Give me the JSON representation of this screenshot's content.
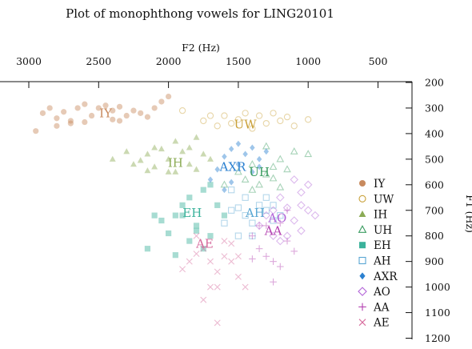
{
  "chart_data": {
    "type": "scatter",
    "title": "Plot of monophthong vowels for LING20101",
    "xlabel": "F2 (Hz)",
    "ylabel": "F1 (Hz)",
    "x_axis": {
      "position": "top",
      "reversed": true,
      "range": [
        3100,
        700
      ],
      "ticks": [
        3000,
        2500,
        2000,
        1500,
        1000,
        500
      ],
      "tick_labels": [
        "3000",
        "2500",
        "2000",
        "1500",
        "1000",
        "500"
      ]
    },
    "y_axis": {
      "position": "right",
      "reversed": true,
      "range": [
        200,
        1200
      ],
      "ticks": [
        200,
        300,
        400,
        500,
        600,
        700,
        800,
        900,
        1000,
        1100,
        1200
      ],
      "tick_labels": [
        "200",
        "300",
        "400",
        "500",
        "600",
        "700",
        "800",
        "900",
        "1000",
        "1100",
        "1200"
      ]
    },
    "grid": false,
    "legend_position": "right",
    "series": [
      {
        "name": "IY",
        "marker": "circle-filled",
        "color": "#c88a5e",
        "label_pos": [
          2450,
          320
        ],
        "points": [
          [
            2900,
            320
          ],
          [
            2850,
            300
          ],
          [
            2800,
            340
          ],
          [
            2750,
            315
          ],
          [
            2700,
            350
          ],
          [
            2650,
            300
          ],
          [
            2600,
            285
          ],
          [
            2550,
            330
          ],
          [
            2500,
            300
          ],
          [
            2450,
            290
          ],
          [
            2400,
            310
          ],
          [
            2350,
            295
          ],
          [
            2300,
            330
          ],
          [
            2250,
            310
          ],
          [
            2200,
            320
          ],
          [
            2100,
            300
          ],
          [
            2050,
            275
          ],
          [
            2000,
            255
          ],
          [
            2950,
            390
          ],
          [
            2800,
            370
          ],
          [
            2700,
            360
          ],
          [
            2400,
            345
          ],
          [
            2600,
            355
          ],
          [
            2350,
            350
          ],
          [
            2150,
            335
          ]
        ]
      },
      {
        "name": "UW",
        "marker": "circle-open",
        "color": "#c9a13a",
        "label_pos": [
          1450,
          365
        ],
        "points": [
          [
            1750,
            350
          ],
          [
            1650,
            370
          ],
          [
            1600,
            330
          ],
          [
            1550,
            360
          ],
          [
            1500,
            345
          ],
          [
            1450,
            320
          ],
          [
            1400,
            380
          ],
          [
            1350,
            330
          ],
          [
            1300,
            360
          ],
          [
            1250,
            320
          ],
          [
            1200,
            350
          ],
          [
            1150,
            335
          ],
          [
            1100,
            370
          ],
          [
            1000,
            345
          ],
          [
            1900,
            310
          ],
          [
            1700,
            330
          ]
        ]
      },
      {
        "name": "IH",
        "marker": "triangle-filled",
        "color": "#8bab55",
        "label_pos": [
          1950,
          515
        ],
        "points": [
          [
            2300,
            470
          ],
          [
            2250,
            520
          ],
          [
            2200,
            505
          ],
          [
            2150,
            480
          ],
          [
            2100,
            530
          ],
          [
            2050,
            460
          ],
          [
            2000,
            500
          ],
          [
            1950,
            550
          ],
          [
            1900,
            470
          ],
          [
            1850,
            520
          ],
          [
            1800,
            540
          ],
          [
            1750,
            480
          ],
          [
            1700,
            500
          ],
          [
            2400,
            500
          ],
          [
            2150,
            545
          ],
          [
            1950,
            430
          ],
          [
            2100,
            455
          ],
          [
            1850,
            455
          ],
          [
            1800,
            415
          ],
          [
            2000,
            550
          ]
        ]
      },
      {
        "name": "UH",
        "marker": "triangle-open",
        "color": "#3c9d62",
        "label_pos": [
          1350,
          550
        ],
        "points": [
          [
            1600,
            600
          ],
          [
            1500,
            550
          ],
          [
            1450,
            580
          ],
          [
            1400,
            520
          ],
          [
            1350,
            600
          ],
          [
            1300,
            560
          ],
          [
            1250,
            530
          ],
          [
            1200,
            500
          ],
          [
            1150,
            540
          ],
          [
            1100,
            470
          ],
          [
            1000,
            480
          ],
          [
            1200,
            610
          ],
          [
            1300,
            450
          ],
          [
            1400,
            620
          ],
          [
            1250,
            575
          ]
        ]
      },
      {
        "name": "EH",
        "marker": "square-filled",
        "color": "#3bb29b",
        "label_pos": [
          1830,
          710
        ],
        "points": [
          [
            1950,
            720
          ],
          [
            1900,
            680
          ],
          [
            1850,
            650
          ],
          [
            1800,
            760
          ],
          [
            1750,
            620
          ],
          [
            1700,
            600
          ],
          [
            1650,
            680
          ],
          [
            1600,
            720
          ],
          [
            1850,
            820
          ],
          [
            2000,
            790
          ],
          [
            2100,
            720
          ],
          [
            2150,
            850
          ],
          [
            1750,
            850
          ],
          [
            1700,
            800
          ],
          [
            1950,
            875
          ],
          [
            1800,
            780
          ],
          [
            1900,
            720
          ],
          [
            2050,
            740
          ]
        ]
      },
      {
        "name": "AH",
        "marker": "square-open",
        "color": "#59a7d3",
        "label_pos": [
          1380,
          710
        ],
        "points": [
          [
            1600,
            750
          ],
          [
            1550,
            700
          ],
          [
            1500,
            690
          ],
          [
            1450,
            720
          ],
          [
            1400,
            750
          ],
          [
            1350,
            680
          ],
          [
            1300,
            700
          ],
          [
            1250,
            740
          ],
          [
            1200,
            720
          ],
          [
            1500,
            800
          ],
          [
            1400,
            800
          ],
          [
            1300,
            650
          ],
          [
            1450,
            650
          ],
          [
            1550,
            620
          ],
          [
            1250,
            680
          ]
        ]
      },
      {
        "name": "AXR",
        "marker": "diamond-filled",
        "color": "#2b80d0",
        "label_pos": [
          1540,
          530
        ],
        "points": [
          [
            1650,
            540
          ],
          [
            1600,
            490
          ],
          [
            1550,
            460
          ],
          [
            1500,
            520
          ],
          [
            1450,
            480
          ],
          [
            1400,
            550
          ],
          [
            1350,
            500
          ],
          [
            1300,
            470
          ],
          [
            1600,
            620
          ],
          [
            1550,
            590
          ],
          [
            1500,
            440
          ],
          [
            1700,
            580
          ],
          [
            1400,
            455
          ],
          [
            1350,
            530
          ]
        ]
      },
      {
        "name": "AO",
        "marker": "diamond-open",
        "color": "#b263d8",
        "label_pos": [
          1220,
          730
        ],
        "points": [
          [
            1350,
            760
          ],
          [
            1300,
            720
          ],
          [
            1250,
            700
          ],
          [
            1200,
            650
          ],
          [
            1150,
            690
          ],
          [
            1100,
            740
          ],
          [
            1050,
            680
          ],
          [
            1000,
            700
          ],
          [
            950,
            720
          ],
          [
            1050,
            630
          ],
          [
            1100,
            580
          ],
          [
            1000,
            600
          ],
          [
            1250,
            800
          ],
          [
            1150,
            800
          ],
          [
            1200,
            820
          ],
          [
            1050,
            780
          ]
        ]
      },
      {
        "name": "AA",
        "marker": "plus",
        "color": "#b340b0",
        "label_pos": [
          1250,
          780
        ],
        "points": [
          [
            1400,
            800
          ],
          [
            1350,
            850
          ],
          [
            1300,
            880
          ],
          [
            1250,
            900
          ],
          [
            1200,
            920
          ],
          [
            1150,
            820
          ],
          [
            1100,
            860
          ],
          [
            1250,
            980
          ],
          [
            1350,
            760
          ],
          [
            1400,
            890
          ],
          [
            1200,
            750
          ],
          [
            1150,
            700
          ],
          [
            1300,
            760
          ]
        ]
      },
      {
        "name": "AE",
        "marker": "x",
        "color": "#d66a9c",
        "label_pos": [
          1740,
          830
        ],
        "points": [
          [
            1850,
            900
          ],
          [
            1800,
            870
          ],
          [
            1750,
            850
          ],
          [
            1700,
            900
          ],
          [
            1650,
            940
          ],
          [
            1600,
            880
          ],
          [
            1550,
            830
          ],
          [
            1500,
            960
          ],
          [
            1450,
            1000
          ],
          [
            1700,
            1000
          ],
          [
            1750,
            1050
          ],
          [
            1650,
            1140
          ],
          [
            1800,
            800
          ],
          [
            1550,
            900
          ],
          [
            1600,
            820
          ],
          [
            1900,
            930
          ],
          [
            1500,
            880
          ],
          [
            1650,
            1000
          ]
        ]
      }
    ]
  }
}
